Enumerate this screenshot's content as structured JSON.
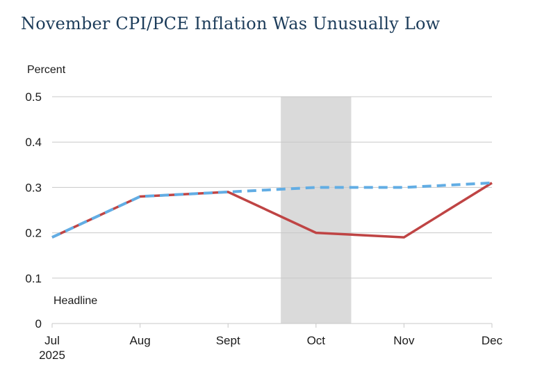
{
  "chart_data": {
    "type": "line",
    "title": "November CPI/PCE Inflation Was Unusually Low",
    "ylabel": "Percent",
    "annotation": "Headline",
    "categories": [
      "Jul",
      "Aug",
      "Sept",
      "Oct",
      "Nov",
      "Dec"
    ],
    "x_year_label": {
      "index": 0,
      "text": "2025"
    },
    "ylim": [
      0,
      0.5
    ],
    "y_ticks": [
      0,
      0.1,
      0.2,
      0.3,
      0.4,
      0.5
    ],
    "y_tick_labels": [
      "0",
      "0.1",
      "0.2",
      "0.3",
      "0.4",
      "0.5"
    ],
    "grid": true,
    "legend_position": "none",
    "series": [
      {
        "id": "headline-solid-red",
        "name": "Headline",
        "style": "solid",
        "color": "#bf4444",
        "stroke_width": 3.5,
        "values": [
          0.19,
          0.28,
          0.29,
          0.2,
          0.19,
          0.31
        ]
      },
      {
        "id": "dashed-blue",
        "name": "",
        "style": "dashed",
        "color": "#62ade4",
        "stroke_width": 4,
        "values": [
          0.19,
          0.28,
          0.29,
          0.3,
          0.3,
          0.31
        ]
      }
    ],
    "shaded_band": {
      "x_from": 2.6,
      "x_to": 3.4,
      "color": "#dadada"
    },
    "colors": {
      "grid": "#c8c8c8",
      "axis": "#c8c8c8",
      "tick_text": "#1a1a1a",
      "title_text": "#1c3c5a",
      "background": "#ffffff"
    }
  }
}
